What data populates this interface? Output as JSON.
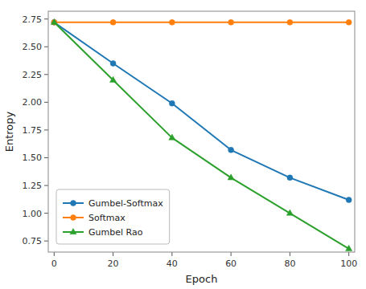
{
  "chart_data": {
    "type": "line",
    "xlabel": "Epoch",
    "ylabel": "Entropy",
    "x": [
      0,
      20,
      40,
      60,
      80,
      100
    ],
    "series": [
      {
        "name": "Gumbel-Softmax",
        "color": "#1f77b4",
        "marker": "circle",
        "values": [
          2.72,
          2.35,
          1.99,
          1.57,
          1.32,
          1.12
        ]
      },
      {
        "name": "Softmax",
        "color": "#ff7f0e",
        "marker": "circle",
        "values": [
          2.72,
          2.72,
          2.72,
          2.72,
          2.72,
          2.72
        ]
      },
      {
        "name": "Gumbel Rao",
        "color": "#2ca02c",
        "marker": "triangle",
        "values": [
          2.72,
          2.2,
          1.68,
          1.32,
          1.0,
          0.68
        ]
      }
    ],
    "xlim": [
      -2,
      102
    ],
    "ylim": [
      0.65,
      2.82
    ],
    "xticks": [
      0,
      20,
      40,
      60,
      80,
      100
    ],
    "yticks": [
      0.75,
      {
        "value": 1.0,
        "label": "1.00"
      },
      1.25,
      {
        "value": 1.5,
        "label": "1.50"
      },
      1.75,
      {
        "value": 2.0,
        "label": "2.00"
      },
      2.25,
      {
        "value": 2.5,
        "label": "2.50"
      },
      2.75
    ],
    "grid": false,
    "legend": "lower left"
  }
}
